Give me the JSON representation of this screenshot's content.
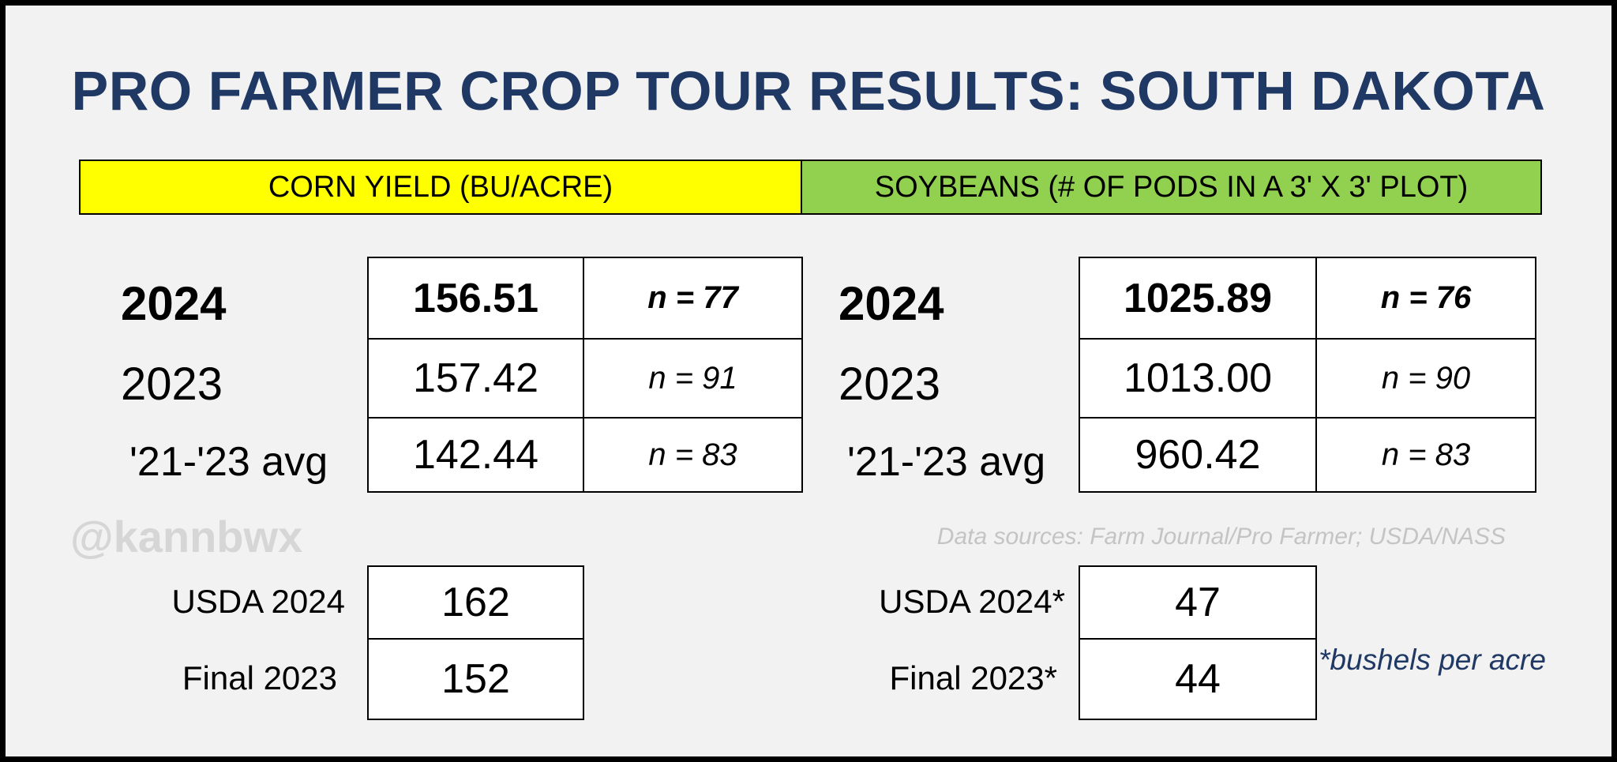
{
  "title": "PRO FARMER CROP TOUR RESULTS: SOUTH DAKOTA",
  "colors": {
    "title": "#1f3864",
    "corn_header_bg": "#ffff00",
    "soy_header_bg": "#92d050",
    "footnote": "#1f3864"
  },
  "corn": {
    "header": "CORN YIELD (BU/ACRE)",
    "rows": [
      {
        "label": "2024",
        "value": "156.51",
        "n": "n = 77"
      },
      {
        "label": "2023",
        "value": "157.42",
        "n": "n = 91"
      },
      {
        "label": "'21-'23 avg",
        "value": "142.44",
        "n": "n = 83"
      }
    ],
    "usda": [
      {
        "label": "USDA 2024",
        "value": "162"
      },
      {
        "label": "Final 2023",
        "value": "152"
      }
    ]
  },
  "soybeans": {
    "header": "SOYBEANS (# OF PODS IN A 3' X 3' PLOT)",
    "rows": [
      {
        "label": "2024",
        "value": "1025.89",
        "n": "n =  76"
      },
      {
        "label": "2023",
        "value": "1013.00",
        "n": "n =  90"
      },
      {
        "label": "'21-'23 avg",
        "value": "960.42",
        "n": "n = 83"
      }
    ],
    "usda": [
      {
        "label": "USDA 2024*",
        "value": "47"
      },
      {
        "label": "Final 2023*",
        "value": "44"
      }
    ]
  },
  "watermark": "@kannbwx",
  "sources": "Data sources: Farm Journal/Pro Farmer; USDA/NASS",
  "footnote": "*bushels per acre"
}
